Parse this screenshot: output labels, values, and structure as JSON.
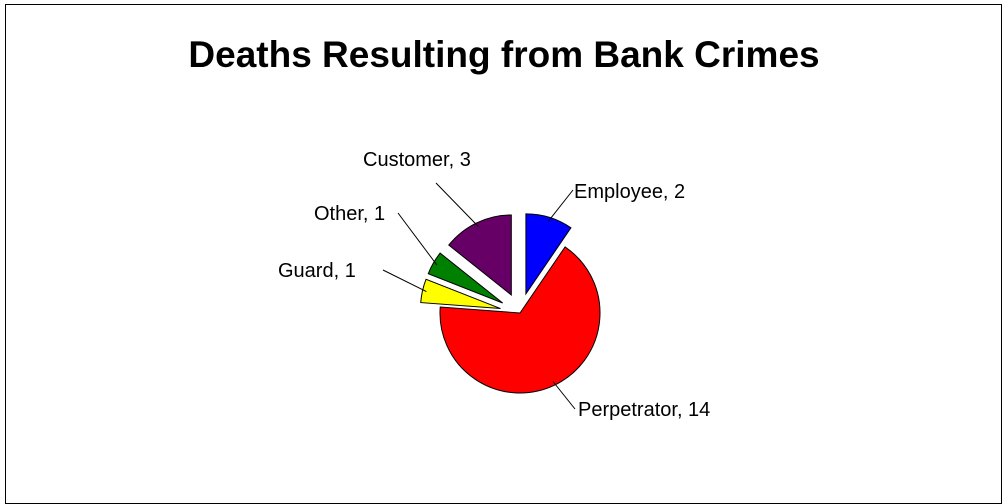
{
  "chart_data": {
    "type": "pie",
    "title": "Deaths Resulting from Bank Crimes",
    "slices": [
      {
        "label": "Employee",
        "value": 2,
        "display": "Employee, 2",
        "color": "#0000ff"
      },
      {
        "label": "Perpetrator",
        "value": 14,
        "display": "Perpetrator, 14",
        "color": "#ff0000"
      },
      {
        "label": "Guard",
        "value": 1,
        "display": "Guard, 1",
        "color": "#ffff00"
      },
      {
        "label": "Other",
        "value": 1,
        "display": "Other, 1",
        "color": "#008000"
      },
      {
        "label": "Customer",
        "value": 3,
        "display": "Customer, 3",
        "color": "#660066"
      }
    ],
    "exploded": [
      "Employee",
      "Guard",
      "Other",
      "Customer"
    ],
    "data_labels": "category, value",
    "legend": "none"
  }
}
